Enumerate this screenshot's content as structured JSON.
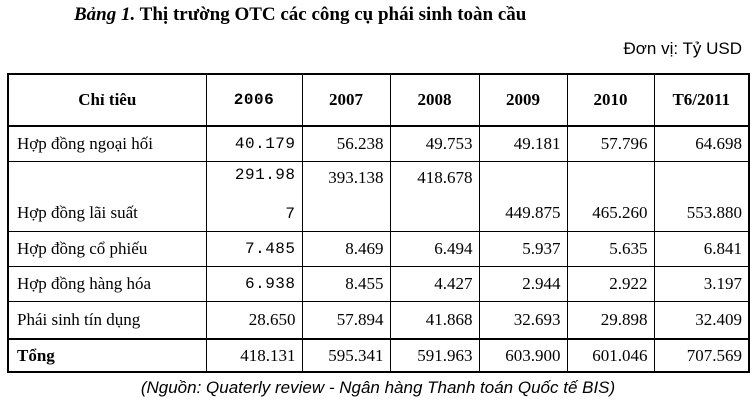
{
  "title": {
    "number": "Bảng 1.",
    "text": "Thị trường OTC các công cụ phái sinh toàn cầu"
  },
  "unit": "Đơn vị: Tỷ USD",
  "table": {
    "headers": [
      "Chỉ tiêu",
      "2006",
      "2007",
      "2008",
      "2009",
      "2010",
      "T6/2011"
    ],
    "rows": [
      {
        "label": "Hợp đồng ngoại hối",
        "values": [
          "40.179",
          "56.238",
          "49.753",
          "49.181",
          "57.796",
          "64.698"
        ]
      },
      {
        "label": "Hợp đồng lãi suất",
        "values_2006_line1": "291.98",
        "values_2006_line2": "7",
        "values": [
          "291.987",
          "393.138",
          "418.678",
          "449.875",
          "465.260",
          "553.880"
        ]
      },
      {
        "label": "Hợp đồng cổ phiếu",
        "values": [
          "7.485",
          "8.469",
          "6.494",
          "5.937",
          "5.635",
          "6.841"
        ]
      },
      {
        "label": "Hợp đồng hàng hóa",
        "values": [
          "6.938",
          "8.455",
          "4.427",
          "2.944",
          "2.922",
          "3.197"
        ]
      },
      {
        "label": "Phái sinh tín dụng",
        "values": [
          "28.650",
          "57.894",
          "41.868",
          "32.693",
          "29.898",
          "32.409"
        ]
      },
      {
        "label": "Tổng",
        "values": [
          "418.131",
          "595.341",
          "591.963",
          "603.900",
          "601.046",
          "707.569"
        ]
      }
    ]
  },
  "source": "(Nguồn: Quaterly review - Ngân hàng Thanh toán Quốc tế BIS)"
}
